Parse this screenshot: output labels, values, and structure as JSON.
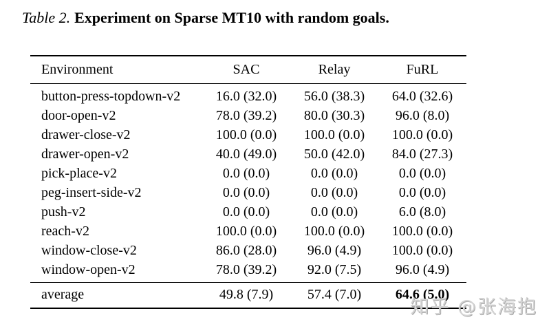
{
  "caption": {
    "number": "Table 2.",
    "text": "Experiment on Sparse MT10 with random goals."
  },
  "table": {
    "headers": [
      "Environment",
      "SAC",
      "Relay",
      "FuRL"
    ],
    "rows": [
      {
        "env": "button-press-topdown-v2",
        "sac": "16.0 (32.0)",
        "relay": "56.0 (38.3)",
        "furl": "64.0 (32.6)"
      },
      {
        "env": "door-open-v2",
        "sac": "78.0 (39.2)",
        "relay": "80.0 (30.3)",
        "furl": "96.0 (8.0)"
      },
      {
        "env": "drawer-close-v2",
        "sac": "100.0 (0.0)",
        "relay": "100.0 (0.0)",
        "furl": "100.0 (0.0)"
      },
      {
        "env": "drawer-open-v2",
        "sac": "40.0 (49.0)",
        "relay": "50.0 (42.0)",
        "furl": "84.0 (27.3)"
      },
      {
        "env": "pick-place-v2",
        "sac": "0.0 (0.0)",
        "relay": "0.0 (0.0)",
        "furl": "0.0 (0.0)"
      },
      {
        "env": "peg-insert-side-v2",
        "sac": "0.0 (0.0)",
        "relay": "0.0 (0.0)",
        "furl": "0.0 (0.0)"
      },
      {
        "env": "push-v2",
        "sac": "0.0 (0.0)",
        "relay": "0.0 (0.0)",
        "furl": "6.0 (8.0)"
      },
      {
        "env": "reach-v2",
        "sac": "100.0 (0.0)",
        "relay": "100.0 (0.0)",
        "furl": "100.0 (0.0)"
      },
      {
        "env": "window-close-v2",
        "sac": "86.0 (28.0)",
        "relay": "96.0 (4.9)",
        "furl": "100.0 (0.0)"
      },
      {
        "env": "window-open-v2",
        "sac": "78.0 (39.2)",
        "relay": "92.0 (7.5)",
        "furl": "96.0 (4.9)"
      }
    ],
    "footer": {
      "env": "average",
      "sac": "49.8 (7.9)",
      "relay": "57.4 (7.0)",
      "furl": "64.6 (5.0)"
    }
  },
  "chart_data": {
    "type": "table",
    "title": "Table 2. Experiment on Sparse MT10 with random goals.",
    "columns": [
      "Environment",
      "SAC",
      "Relay",
      "FuRL"
    ],
    "categories": [
      "button-press-topdown-v2",
      "door-open-v2",
      "drawer-close-v2",
      "drawer-open-v2",
      "pick-place-v2",
      "peg-insert-side-v2",
      "push-v2",
      "reach-v2",
      "window-close-v2",
      "window-open-v2",
      "average"
    ],
    "series": [
      {
        "name": "SAC",
        "mean": [
          16.0,
          78.0,
          100.0,
          40.0,
          0.0,
          0.0,
          0.0,
          100.0,
          86.0,
          78.0,
          49.8
        ],
        "std": [
          32.0,
          39.2,
          0.0,
          49.0,
          0.0,
          0.0,
          0.0,
          0.0,
          28.0,
          39.2,
          7.9
        ]
      },
      {
        "name": "Relay",
        "mean": [
          56.0,
          80.0,
          100.0,
          50.0,
          0.0,
          0.0,
          0.0,
          100.0,
          96.0,
          92.0,
          57.4
        ],
        "std": [
          38.3,
          30.3,
          0.0,
          42.0,
          0.0,
          0.0,
          0.0,
          0.0,
          4.9,
          7.5,
          7.0
        ]
      },
      {
        "name": "FuRL",
        "mean": [
          64.0,
          96.0,
          100.0,
          84.0,
          0.0,
          0.0,
          6.0,
          100.0,
          100.0,
          96.0,
          64.6
        ],
        "std": [
          32.6,
          8.0,
          0.0,
          27.3,
          0.0,
          0.0,
          8.0,
          0.0,
          0.0,
          4.9,
          5.0
        ]
      }
    ]
  },
  "watermark": {
    "text": "知乎 @张海抱",
    "color": "#d4d4d4"
  }
}
